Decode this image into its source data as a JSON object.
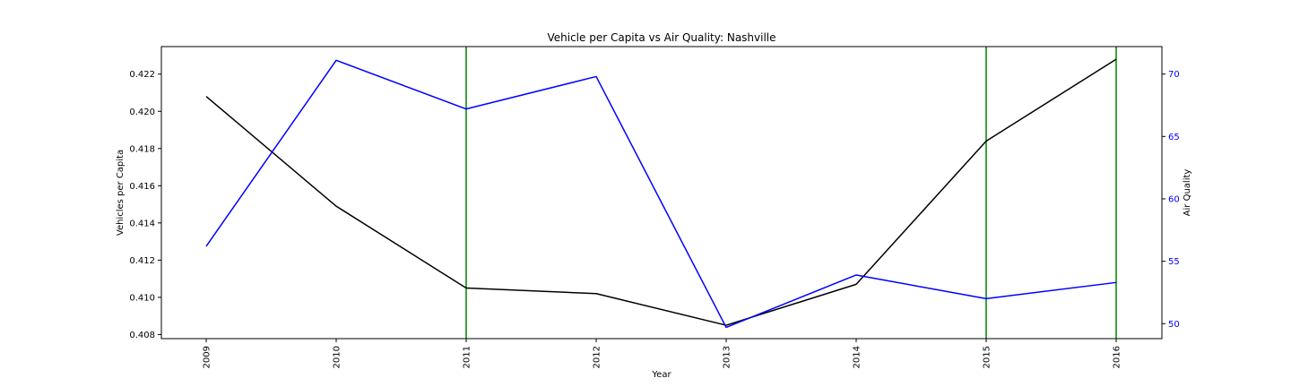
{
  "chart_data": {
    "type": "line",
    "title": "Vehicle per Capita vs Air Quality: Nashville",
    "xlabel": "Year",
    "ylabel_left": "Vehicles per Capita",
    "ylabel_right": "Air Quality",
    "categories": [
      "2009",
      "2010",
      "2011",
      "2012",
      "2013",
      "2014",
      "2015",
      "2016"
    ],
    "x_tick_rotation": "vertical",
    "series": [
      {
        "axis": "left",
        "color": "#000000",
        "values": [
          0.4208,
          0.4149,
          0.4105,
          0.4102,
          0.4085,
          0.4107,
          0.4184,
          0.4228
        ]
      },
      {
        "axis": "right",
        "color": "#0000ff",
        "values": [
          56.2,
          71.1,
          67.2,
          69.8,
          49.7,
          53.9,
          52.0,
          53.3
        ]
      }
    ],
    "markers": {
      "color": "#008000",
      "x": [
        "2011",
        "2015",
        "2016"
      ]
    },
    "ylim_left": [
      0.40778,
      0.42348
    ],
    "ylim_right": [
      48.8,
      72.2
    ],
    "yticks_left": [
      "0.408",
      "0.410",
      "0.412",
      "0.414",
      "0.416",
      "0.418",
      "0.420",
      "0.422"
    ],
    "yticks_right": [
      "50",
      "55",
      "60",
      "65",
      "70"
    ],
    "right_axis_color": "#0000ff",
    "grid": false
  }
}
